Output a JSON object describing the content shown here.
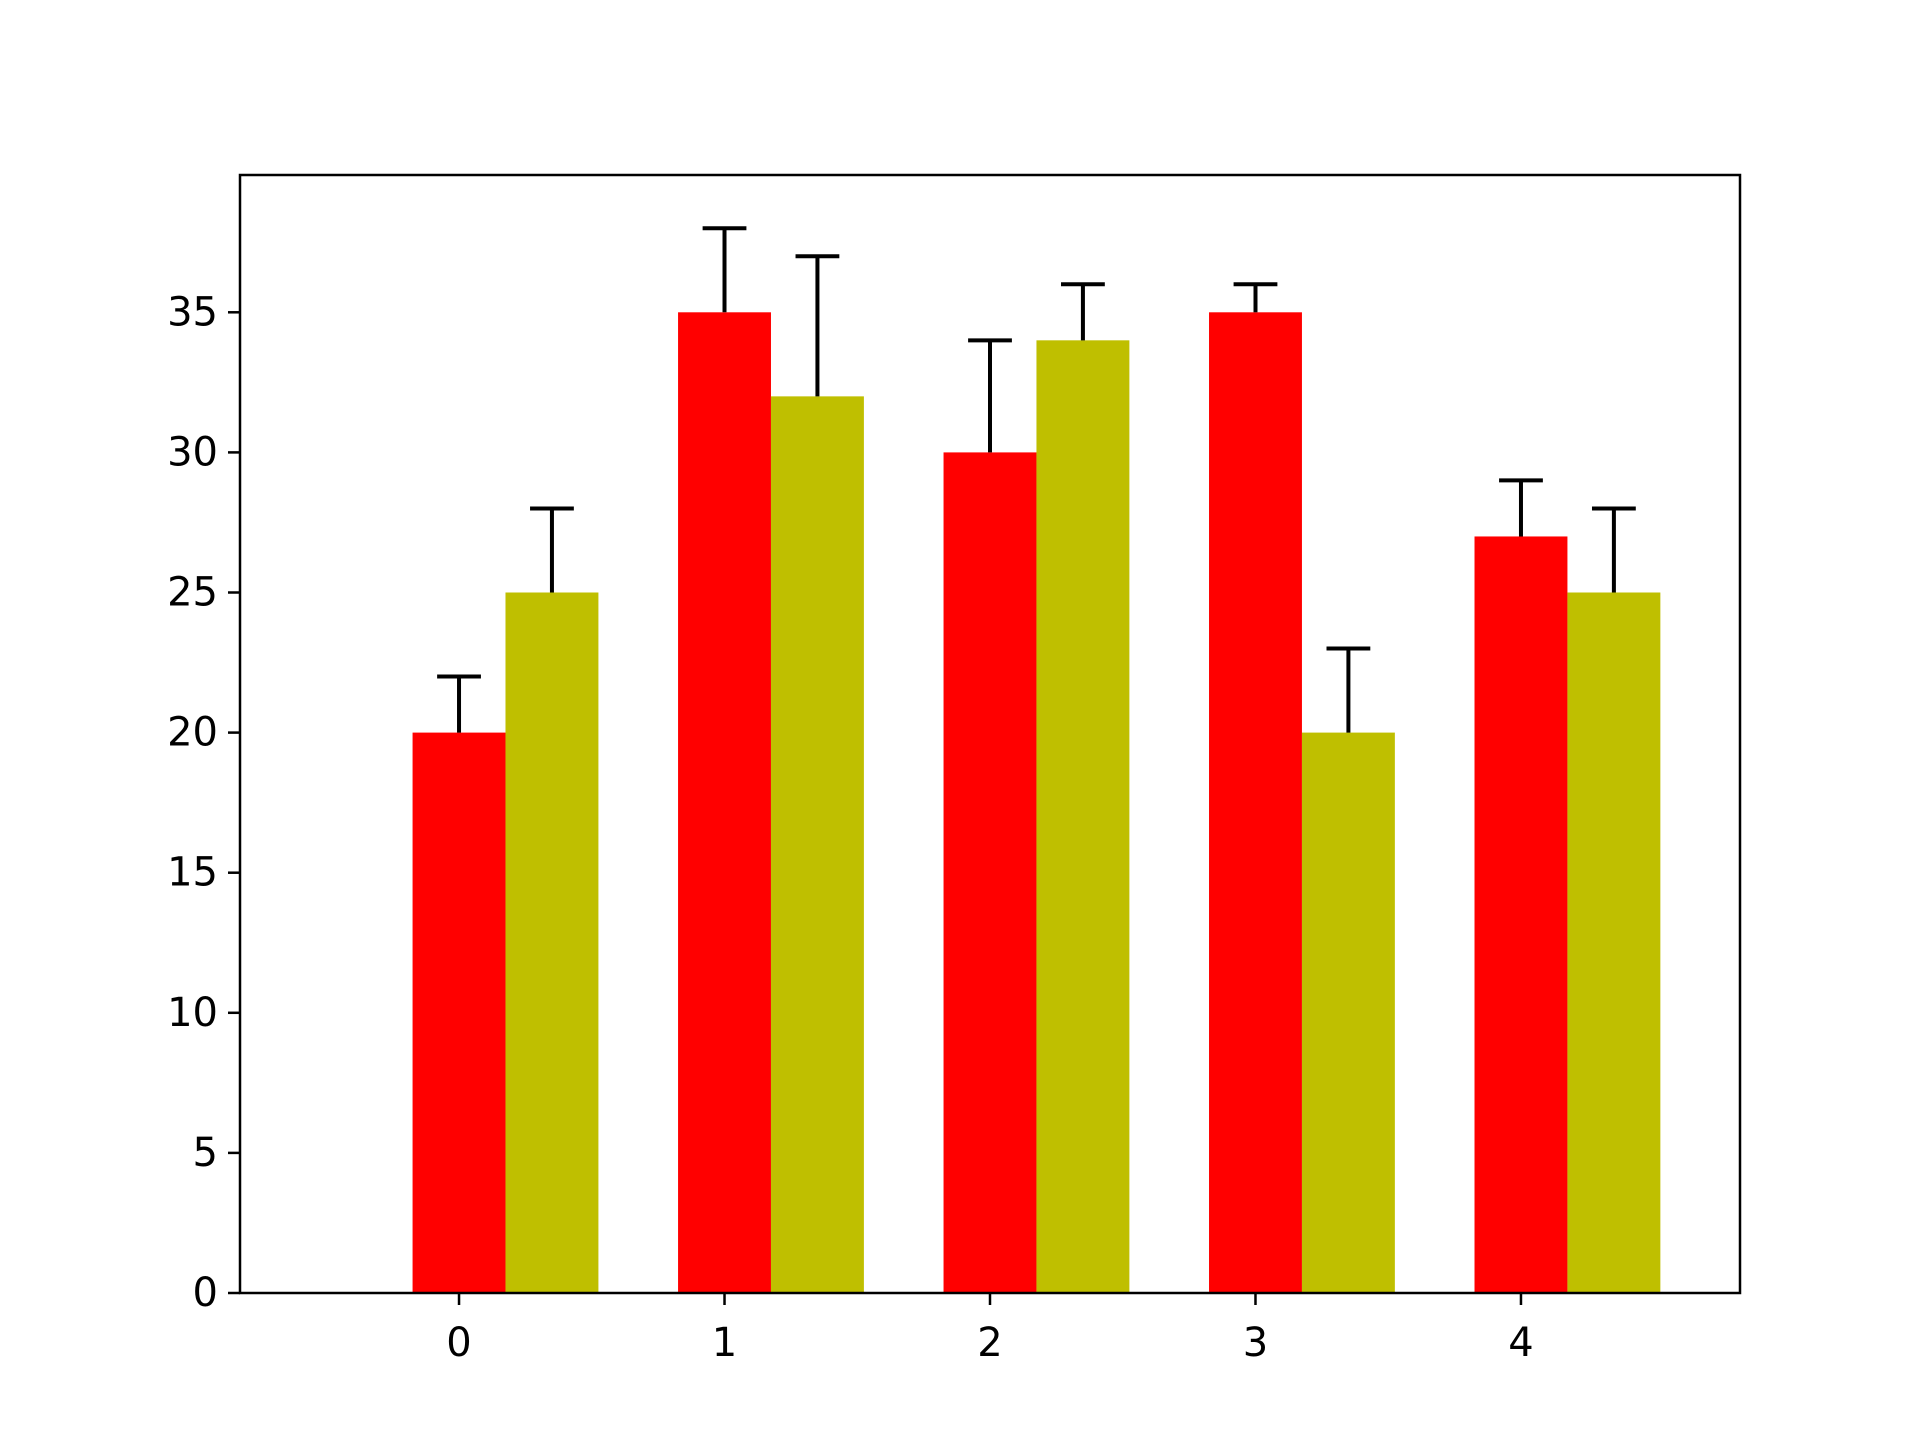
{
  "chart_data": {
    "type": "bar",
    "title": "",
    "xlabel": "",
    "ylabel": "",
    "categories": [
      "0",
      "1",
      "2",
      "3",
      "4"
    ],
    "series": [
      {
        "color": "#ff0000",
        "values": [
          20,
          35,
          30,
          35,
          27
        ],
        "errors": [
          2,
          3,
          4,
          1,
          2
        ]
      },
      {
        "color": "#bfbf00",
        "values": [
          25,
          32,
          34,
          20,
          25
        ],
        "errors": [
          3,
          5,
          2,
          3,
          3
        ]
      }
    ],
    "ylim": [
      0,
      40
    ],
    "yticks": [
      "0",
      "5",
      "10",
      "15",
      "20",
      "25",
      "30",
      "35"
    ],
    "grid": false,
    "legend": "none",
    "error_bars": true
  }
}
